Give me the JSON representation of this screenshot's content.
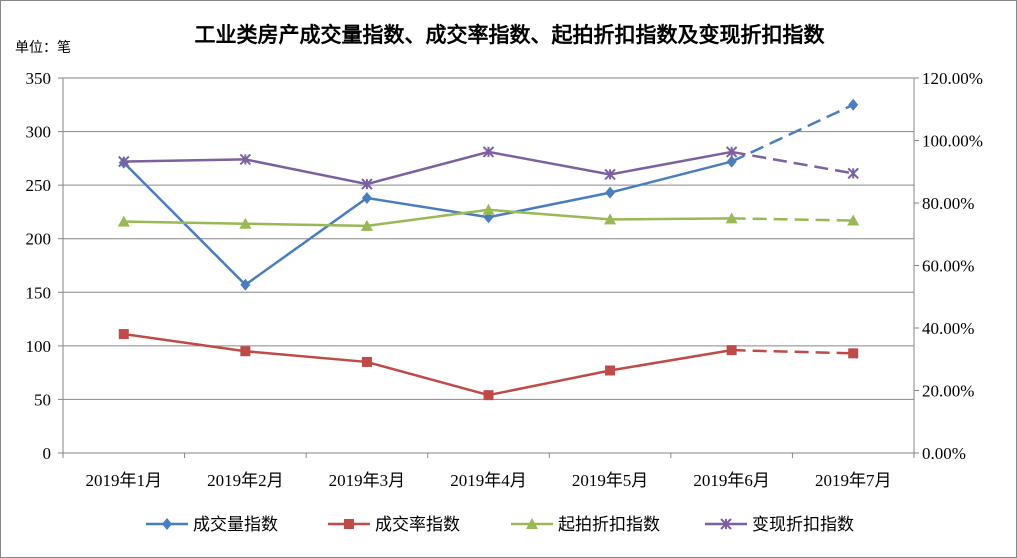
{
  "chart_data": {
    "type": "line",
    "title": "工业类房产成交量指数、成交率指数、起拍折扣指数及变现折扣指数",
    "unit_label": "单位：笔",
    "categories": [
      "2019年1月",
      "2019年2月",
      "2019年3月",
      "2019年4月",
      "2019年5月",
      "2019年6月",
      "2019年7月"
    ],
    "y_left": {
      "ylim": [
        0,
        350
      ],
      "ticks": [
        "0",
        "50",
        "100",
        "150",
        "200",
        "250",
        "300",
        "350"
      ]
    },
    "y_right": {
      "ylim": [
        0,
        1.2
      ],
      "ticks": [
        "0.00%",
        "20.00%",
        "40.00%",
        "60.00%",
        "80.00%",
        "100.00%",
        "120.00%"
      ]
    },
    "grid": true,
    "legend_position": "bottom",
    "dashed_last_segment": true,
    "series": [
      {
        "name": "成交量指数",
        "color": "#4a7ebb",
        "marker": "diamond",
        "values": [
          271,
          157,
          238,
          220,
          243,
          272,
          325
        ]
      },
      {
        "name": "成交率指数",
        "color": "#be4b48",
        "marker": "square",
        "values": [
          111,
          95,
          85,
          54,
          77,
          96,
          93
        ]
      },
      {
        "name": "起拍折扣指数",
        "color": "#98b954",
        "marker": "triangle",
        "values": [
          216,
          214,
          212,
          227,
          218,
          219,
          217
        ]
      },
      {
        "name": "变现折扣指数",
        "color": "#7d60a0",
        "marker": "x",
        "values": [
          272,
          274,
          251,
          281,
          260,
          281,
          261
        ]
      }
    ]
  }
}
